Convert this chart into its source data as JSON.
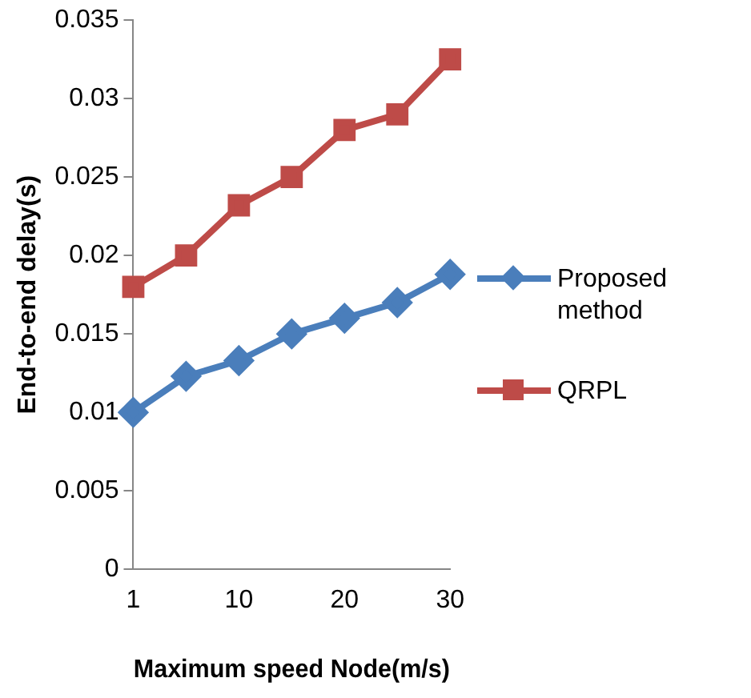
{
  "chart_data": {
    "type": "line",
    "xlabel": "Maximum speed Node(m/s)",
    "ylabel": "End-to-end delay(s)",
    "categories": [
      "1",
      null,
      "10",
      null,
      "20",
      null,
      "30"
    ],
    "series": [
      {
        "name": "Proposed method",
        "color": "#4a7ebb",
        "marker": "diamond",
        "values": [
          0.01,
          0.0123,
          0.0133,
          0.015,
          0.016,
          0.017,
          0.0188
        ]
      },
      {
        "name": "QRPL",
        "color": "#be4b48",
        "marker": "square",
        "values": [
          0.018,
          0.02,
          0.0232,
          0.025,
          0.028,
          0.029,
          0.0325
        ]
      }
    ],
    "ylim": [
      0,
      0.035
    ],
    "yticks": [
      0,
      0.005,
      0.01,
      0.015,
      0.02,
      0.025,
      0.03,
      0.035
    ],
    "grid": false,
    "legend": "right"
  }
}
